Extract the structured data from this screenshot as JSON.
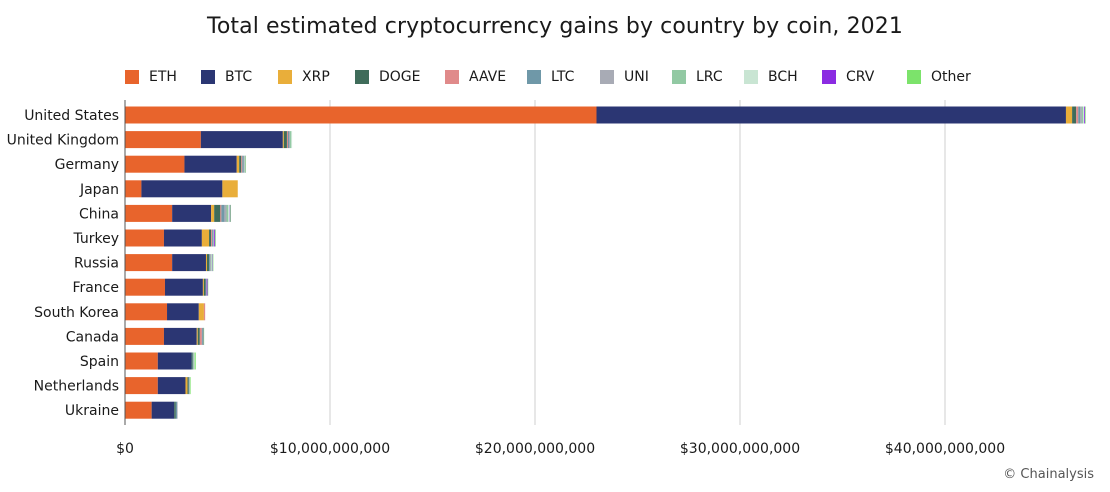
{
  "chart_data": {
    "type": "bar",
    "orientation": "horizontal",
    "stacked": true,
    "title": "Total estimated cryptocurrency gains by country by coin, 2021",
    "xlabel": "",
    "ylabel": "",
    "xlim": [
      0,
      47000000000
    ],
    "xticks": [
      0,
      10000000000,
      20000000000,
      30000000000,
      40000000000
    ],
    "xtick_labels": [
      "$0",
      "$10,000,000,000",
      "$20,000,000,000",
      "$30,000,000,000",
      "$40,000,000,000"
    ],
    "grid": "vertical",
    "legend_position": "top",
    "categories": [
      "United States",
      "United Kingdom",
      "Germany",
      "Japan",
      "China",
      "Turkey",
      "Russia",
      "France",
      "South Korea",
      "Canada",
      "Spain",
      "Netherlands",
      "Ukraine"
    ],
    "series": [
      {
        "name": "ETH",
        "color": "#E8642C",
        "values": [
          23000000000,
          3700000000,
          2900000000,
          800000000,
          2300000000,
          1900000000,
          2300000000,
          1950000000,
          2050000000,
          1900000000,
          1600000000,
          1600000000,
          1300000000
        ]
      },
      {
        "name": "BTC",
        "color": "#2B3673",
        "values": [
          22900000000,
          4000000000,
          2550000000,
          3950000000,
          1900000000,
          1850000000,
          1650000000,
          1850000000,
          1550000000,
          1600000000,
          1650000000,
          1350000000,
          1100000000
        ]
      },
      {
        "name": "XRP",
        "color": "#E9AE3A",
        "values": [
          300000000,
          50000000,
          120000000,
          750000000,
          150000000,
          350000000,
          50000000,
          50000000,
          250000000,
          50000000,
          0,
          100000000,
          0
        ]
      },
      {
        "name": "DOGE",
        "color": "#3F6C5A",
        "values": [
          200000000,
          150000000,
          100000000,
          0,
          300000000,
          100000000,
          100000000,
          80000000,
          0,
          100000000,
          50000000,
          50000000,
          80000000
        ]
      },
      {
        "name": "AAVE",
        "color": "#E08A8A",
        "values": [
          100000000,
          50000000,
          50000000,
          0,
          50000000,
          50000000,
          0,
          0,
          60000000,
          100000000,
          0,
          0,
          0
        ]
      },
      {
        "name": "LTC",
        "color": "#6F98A8",
        "values": [
          100000000,
          50000000,
          60000000,
          0,
          150000000,
          50000000,
          50000000,
          30000000,
          0,
          50000000,
          30000000,
          20000000,
          60000000
        ]
      },
      {
        "name": "UNI",
        "color": "#A8ABB5",
        "values": [
          80000000,
          50000000,
          30000000,
          0,
          100000000,
          50000000,
          50000000,
          20000000,
          0,
          20000000,
          20000000,
          20000000,
          20000000
        ]
      },
      {
        "name": "LRC",
        "color": "#92C9A3",
        "values": [
          60000000,
          50000000,
          20000000,
          0,
          80000000,
          0,
          30000000,
          0,
          0,
          0,
          30000000,
          20000000,
          0
        ]
      },
      {
        "name": "BCH",
        "color": "#C9E5D3",
        "values": [
          50000000,
          50000000,
          20000000,
          0,
          80000000,
          0,
          30000000,
          0,
          0,
          0,
          20000000,
          10000000,
          0
        ]
      },
      {
        "name": "CRV",
        "color": "#8B2BE2",
        "values": [
          40000000,
          0,
          10000000,
          0,
          30000000,
          50000000,
          20000000,
          50000000,
          0,
          10000000,
          0,
          0,
          0
        ]
      },
      {
        "name": "Other",
        "color": "#7CE36B",
        "values": [
          20000000,
          0,
          10000000,
          0,
          20000000,
          10000000,
          10000000,
          10000000,
          0,
          10000000,
          50000000,
          10000000,
          0
        ]
      }
    ]
  },
  "source": "© Chainalysis"
}
